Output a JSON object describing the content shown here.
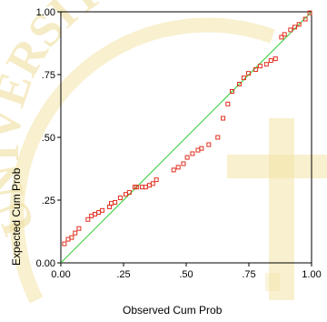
{
  "watermark": {
    "text": "UNIVERSITAS",
    "color": "#f3e3a6"
  },
  "chart_data": {
    "type": "scatter",
    "xlabel": "Observed Cum Prob",
    "ylabel": "Expected Cum Prob",
    "xlim": [
      0,
      1
    ],
    "ylim": [
      0,
      1
    ],
    "x_ticks": [
      {
        "value": 0,
        "label": "0.00"
      },
      {
        "value": 0.25,
        "label": ".25"
      },
      {
        "value": 0.5,
        "label": ".50"
      },
      {
        "value": 0.75,
        "label": ".75"
      },
      {
        "value": 1,
        "label": "1.00"
      }
    ],
    "y_ticks": [
      {
        "value": 0,
        "label": "0.00"
      },
      {
        "value": 0.25,
        "label": ".25"
      },
      {
        "value": 0.5,
        "label": ".50"
      },
      {
        "value": 0.75,
        "label": ".75"
      },
      {
        "value": 1,
        "label": "1.00"
      }
    ],
    "grid": false,
    "reference_line": {
      "from": [
        0,
        0
      ],
      "to": [
        1,
        1
      ],
      "color": "#33cc33"
    },
    "marker_color": "#e0301e",
    "points": [
      [
        0.014,
        0.076
      ],
      [
        0.029,
        0.094
      ],
      [
        0.043,
        0.101
      ],
      [
        0.057,
        0.119
      ],
      [
        0.072,
        0.137
      ],
      [
        0.108,
        0.173
      ],
      [
        0.122,
        0.187
      ],
      [
        0.136,
        0.194
      ],
      [
        0.151,
        0.201
      ],
      [
        0.165,
        0.209
      ],
      [
        0.194,
        0.223
      ],
      [
        0.201,
        0.237
      ],
      [
        0.216,
        0.241
      ],
      [
        0.237,
        0.259
      ],
      [
        0.259,
        0.273
      ],
      [
        0.273,
        0.281
      ],
      [
        0.295,
        0.302
      ],
      [
        0.302,
        0.302
      ],
      [
        0.324,
        0.302
      ],
      [
        0.338,
        0.302
      ],
      [
        0.353,
        0.309
      ],
      [
        0.367,
        0.316
      ],
      [
        0.381,
        0.331
      ],
      [
        0.45,
        0.37
      ],
      [
        0.468,
        0.381
      ],
      [
        0.489,
        0.395
      ],
      [
        0.504,
        0.42
      ],
      [
        0.525,
        0.435
      ],
      [
        0.547,
        0.449
      ],
      [
        0.561,
        0.456
      ],
      [
        0.59,
        0.471
      ],
      [
        0.626,
        0.5
      ],
      [
        0.647,
        0.576
      ],
      [
        0.666,
        0.633
      ],
      [
        0.683,
        0.683
      ],
      [
        0.712,
        0.712
      ],
      [
        0.73,
        0.737
      ],
      [
        0.748,
        0.755
      ],
      [
        0.777,
        0.77
      ],
      [
        0.795,
        0.784
      ],
      [
        0.82,
        0.791
      ],
      [
        0.838,
        0.806
      ],
      [
        0.856,
        0.813
      ],
      [
        0.88,
        0.899
      ],
      [
        0.892,
        0.91
      ],
      [
        0.916,
        0.928
      ],
      [
        0.933,
        0.939
      ],
      [
        0.95,
        0.95
      ],
      [
        0.975,
        0.971
      ],
      [
        0.993,
        0.996
      ]
    ]
  }
}
